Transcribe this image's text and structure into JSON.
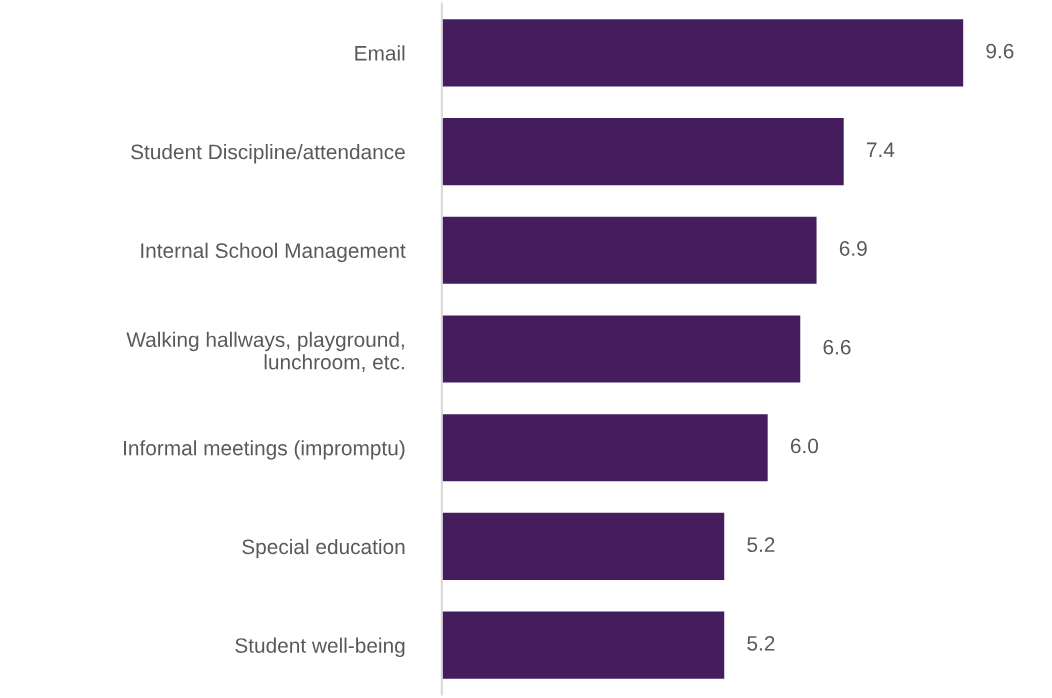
{
  "chart_data": {
    "type": "bar",
    "orientation": "horizontal",
    "categories": [
      "Email",
      "Student Discipline/attendance",
      "Internal School Management",
      "Walking hallways, playground,\nlunchroom, etc.",
      "Informal meetings (impromptu)",
      "Special education",
      "Student well-being"
    ],
    "values": [
      9.6,
      7.4,
      6.9,
      6.6,
      6.0,
      5.2,
      5.2
    ],
    "value_labels": [
      "9.6",
      "7.4",
      "6.9",
      "6.6",
      "6.0",
      "5.2",
      "5.2"
    ],
    "color": "#451c5e",
    "grid": false,
    "legend": false,
    "tick_labels": "y"
  }
}
